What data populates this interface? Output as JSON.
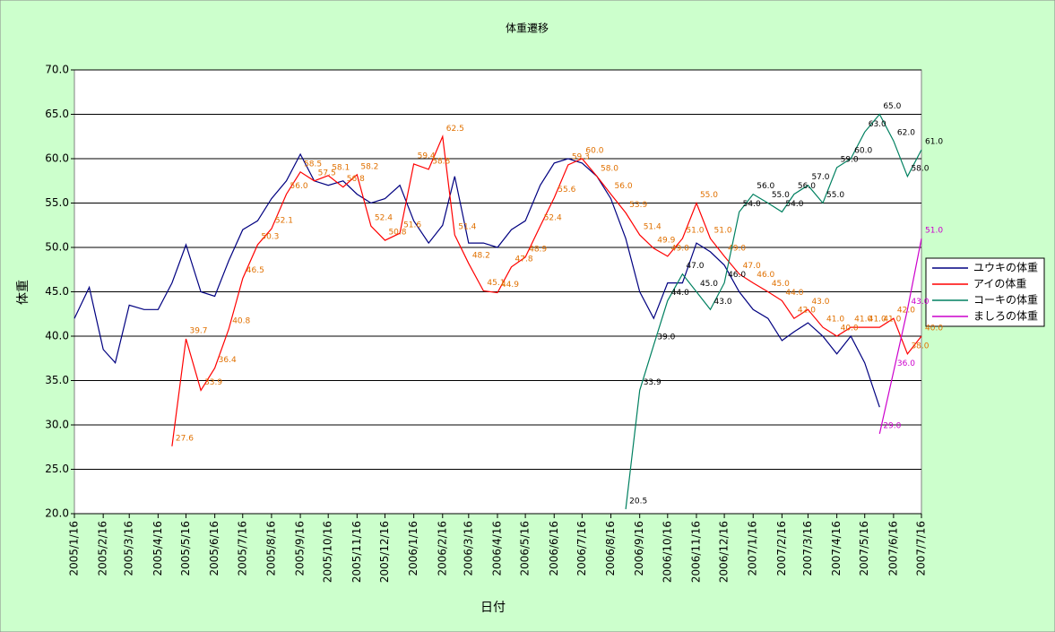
{
  "chart_data": {
    "type": "line",
    "title": "体重遷移",
    "xlabel": "日付",
    "ylabel": "体重",
    "x": [
      "2005/1/16",
      "2005/2/1",
      "2005/2/16",
      "2005/3/1",
      "2005/3/16",
      "2005/4/1",
      "2005/4/16",
      "2005/5/1",
      "2005/5/16",
      "2005/6/1",
      "2005/6/16",
      "2005/7/1",
      "2005/7/16",
      "2005/8/1",
      "2005/8/16",
      "2005/9/1",
      "2005/9/16",
      "2005/10/1",
      "2005/10/16",
      "2005/11/1",
      "2005/11/16",
      "2005/12/1",
      "2005/12/16",
      "2006/1/1",
      "2006/1/16",
      "2006/2/1",
      "2006/2/16",
      "2006/3/1",
      "2006/3/16",
      "2006/4/1",
      "2006/4/16",
      "2006/5/1",
      "2006/5/16",
      "2006/6/1",
      "2006/6/16",
      "2006/7/1",
      "2006/7/16",
      "2006/8/1",
      "2006/8/16",
      "2006/9/1",
      "2006/9/16",
      "2006/10/1",
      "2006/10/16",
      "2006/11/1",
      "2006/11/16",
      "2006/12/1",
      "2006/12/16",
      "2007/1/1",
      "2007/1/16",
      "2007/2/1",
      "2007/2/16",
      "2007/3/1",
      "2007/3/16",
      "2007/4/1",
      "2007/4/16",
      "2007/5/1",
      "2007/5/16",
      "2007/6/1",
      "2007/6/16",
      "2007/7/1",
      "2007/7/16"
    ],
    "xlim": [
      "2005/1/16",
      "2007/7/16"
    ],
    "xticks": [
      "2005/1/16",
      "2005/2/16",
      "2005/3/16",
      "2005/4/16",
      "2005/5/16",
      "2005/6/16",
      "2005/7/16",
      "2005/8/16",
      "2005/9/16",
      "2005/10/16",
      "2005/11/16",
      "2005/12/16",
      "2006/1/16",
      "2006/2/16",
      "2006/3/16",
      "2006/4/16",
      "2006/5/16",
      "2006/6/16",
      "2006/7/16",
      "2006/8/16",
      "2006/9/16",
      "2006/10/16",
      "2006/11/16",
      "2006/12/16",
      "2007/1/16",
      "2007/2/16",
      "2007/3/16",
      "2007/4/16",
      "2007/5/16",
      "2007/6/16",
      "2007/7/16"
    ],
    "ylim": [
      20,
      70
    ],
    "yticks": [
      {
        "value": 20,
        "label": "20.0"
      },
      {
        "value": 25,
        "label": "25.0"
      },
      {
        "value": 30,
        "label": "30.0"
      },
      {
        "value": 35,
        "label": "35.0"
      },
      {
        "value": 40,
        "label": "40.0"
      },
      {
        "value": 45,
        "label": "45.0"
      },
      {
        "value": 50,
        "label": "50.0"
      },
      {
        "value": 55,
        "label": "55.0"
      },
      {
        "value": 60,
        "label": "60.0"
      },
      {
        "value": 65,
        "label": "65.0"
      },
      {
        "value": 70,
        "label": "70.0"
      }
    ],
    "grid": true,
    "legend": "right",
    "series": [
      {
        "name": "ユウキの体重",
        "color": "#000080",
        "label_color": "#000000",
        "values": [
          42,
          45.5,
          38.5,
          37,
          43.5,
          43,
          43,
          46,
          50.3,
          45,
          44.5,
          48.5,
          52,
          53,
          55.5,
          57.5,
          60.5,
          57.5,
          57,
          57.5,
          56,
          55,
          55.5,
          57,
          53,
          50.5,
          52.5,
          58,
          50.5,
          50.5,
          50,
          52,
          53,
          57,
          59.5,
          60,
          59.5,
          58,
          55.5,
          51,
          45,
          42,
          46,
          46,
          50.5,
          49.5,
          48,
          45,
          43,
          42,
          39.5,
          40.5,
          41.5,
          40,
          38,
          40,
          37,
          32,
          null,
          null,
          null
        ]
      },
      {
        "name": "アイの体重",
        "color": "#ff0000",
        "label_color": "#e07000",
        "values": [
          null,
          null,
          null,
          null,
          null,
          null,
          null,
          27.6,
          39.7,
          33.9,
          36.4,
          40.8,
          46.5,
          50.3,
          52.1,
          56,
          58.5,
          57.5,
          58.1,
          56.8,
          58.2,
          52.4,
          50.8,
          51.6,
          59.4,
          58.8,
          62.5,
          51.4,
          48.2,
          45.1,
          44.9,
          47.8,
          48.9,
          52.4,
          55.6,
          59.3,
          60,
          58,
          56,
          53.9,
          51.4,
          49.9,
          49,
          51,
          55,
          51,
          49,
          47,
          46,
          45,
          44,
          42,
          43,
          41,
          40,
          41,
          41,
          41,
          42,
          38,
          40
        ],
        "value_labels": [
          null,
          null,
          null,
          null,
          null,
          null,
          null,
          "27.6",
          "39.7",
          "33.9",
          "36.4",
          "40.8",
          "46.5",
          "50.3",
          "52.1",
          "56.0",
          "58.5",
          "57.5",
          "58.1",
          "56.8",
          "58.2",
          "52.4",
          "50.8",
          "51.6",
          "59.4",
          "58.8",
          "62.5",
          "51.4",
          "48.2",
          "45.1",
          "44.9",
          "47.8",
          "48.9",
          "52.4",
          "55.6",
          "59.3",
          "60.0",
          "58.0",
          "56.0",
          "53.9",
          "51.4",
          "49.9",
          "49.0",
          "51.0",
          "55.0",
          "51.0",
          "49.0",
          "47.0",
          "46.0",
          "45.0",
          "44.0",
          "42.0",
          "43.0",
          "41.0",
          "40.0",
          "41.0",
          "41.0",
          "41.0",
          "42.0",
          "38.0",
          "40.0"
        ]
      },
      {
        "name": "コーキの体重",
        "color": "#008060",
        "label_color": "#000000",
        "values": [
          null,
          null,
          null,
          null,
          null,
          null,
          null,
          null,
          null,
          null,
          null,
          null,
          null,
          null,
          null,
          null,
          null,
          null,
          null,
          null,
          null,
          null,
          null,
          null,
          null,
          null,
          null,
          null,
          null,
          null,
          null,
          null,
          null,
          null,
          null,
          null,
          null,
          null,
          null,
          20.5,
          33.9,
          39,
          44,
          47,
          45,
          43,
          46,
          54,
          56,
          55,
          54,
          56,
          57,
          55,
          59,
          60,
          63,
          65,
          62,
          58,
          61
        ],
        "value_labels": [
          null,
          null,
          null,
          null,
          null,
          null,
          null,
          null,
          null,
          null,
          null,
          null,
          null,
          null,
          null,
          null,
          null,
          null,
          null,
          null,
          null,
          null,
          null,
          null,
          null,
          null,
          null,
          null,
          null,
          null,
          null,
          null,
          null,
          null,
          null,
          null,
          null,
          null,
          null,
          "20.5",
          "33.9",
          "39.0",
          "44.0",
          "47.0",
          "45.0",
          "43.0",
          "46.0",
          "54.0",
          "56.0",
          "55.0",
          "54.0",
          "56.0",
          "57.0",
          "55.0",
          "59.0",
          "60.0",
          "63.0",
          "65.0",
          "62.0",
          "58.0",
          "61.0"
        ]
      },
      {
        "name": "ましろの体重",
        "color": "#cc00cc",
        "label_color": "#cc00cc",
        "values": [
          null,
          null,
          null,
          null,
          null,
          null,
          null,
          null,
          null,
          null,
          null,
          null,
          null,
          null,
          null,
          null,
          null,
          null,
          null,
          null,
          null,
          null,
          null,
          null,
          null,
          null,
          null,
          null,
          null,
          null,
          null,
          null,
          null,
          null,
          null,
          null,
          null,
          null,
          null,
          null,
          null,
          null,
          null,
          null,
          null,
          null,
          null,
          null,
          null,
          null,
          null,
          null,
          null,
          null,
          null,
          null,
          null,
          29,
          36,
          43,
          51
        ],
        "value_labels": [
          null,
          null,
          null,
          null,
          null,
          null,
          null,
          null,
          null,
          null,
          null,
          null,
          null,
          null,
          null,
          null,
          null,
          null,
          null,
          null,
          null,
          null,
          null,
          null,
          null,
          null,
          null,
          null,
          null,
          null,
          null,
          null,
          null,
          null,
          null,
          null,
          null,
          null,
          null,
          null,
          null,
          null,
          null,
          null,
          null,
          null,
          null,
          null,
          null,
          null,
          null,
          null,
          null,
          null,
          null,
          null,
          null,
          "29.0",
          "36.0",
          "43.0",
          "51.0"
        ]
      }
    ]
  }
}
